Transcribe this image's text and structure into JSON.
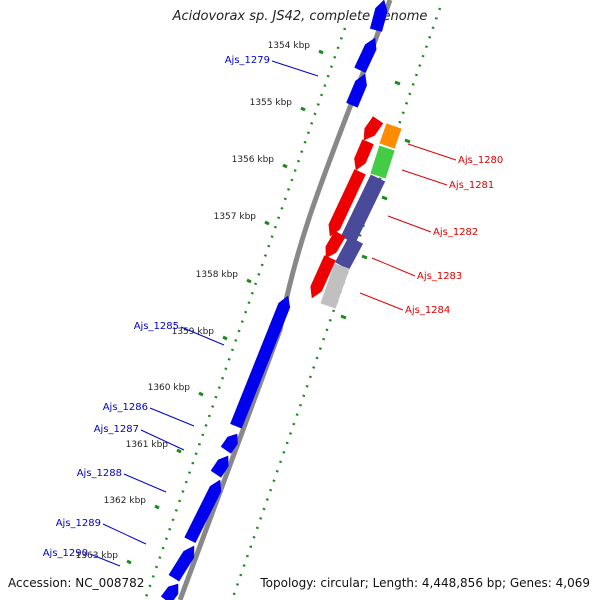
{
  "title": "Acidovorax sp. JS42, complete genome",
  "accession": "Accession: NC_008782",
  "topology": "Topology: circular; Length: 4,448,856 bp; Genes: 4,069",
  "colors": {
    "backbone": "#888888",
    "tick": "#1a8a1a",
    "forward_gene": "#0000ee",
    "reverse_gene": "#ee0000",
    "cog_orange": "#ff8c00",
    "cog_green": "#44cc44",
    "cog_purple": "#4a4a9a",
    "cog_gray": "#c0c0c0",
    "label_forward": "#0000cc",
    "label_reverse": "#dd0000"
  },
  "ruler": [
    "1354 kbp",
    "1355 kbp",
    "1356 kbp",
    "1357 kbp",
    "1358 kbp",
    "1359 kbp",
    "1360 kbp",
    "1361 kbp",
    "1362 kbp",
    "1363 kbp"
  ],
  "forward_genes": [
    {
      "label": "Ajs_1279",
      "labeled": true
    },
    {
      "label": "Ajs_1285",
      "labeled": true
    },
    {
      "label": "Ajs_1286",
      "labeled": true
    },
    {
      "label": "Ajs_1287",
      "labeled": true
    },
    {
      "label": "Ajs_1288",
      "labeled": true
    },
    {
      "label": "Ajs_1289",
      "labeled": true
    },
    {
      "label": "Ajs_1290",
      "labeled": true
    }
  ],
  "reverse_genes": [
    {
      "label": "Ajs_1280",
      "cog_color": "cog_orange"
    },
    {
      "label": "Ajs_1281",
      "cog_color": "cog_green"
    },
    {
      "label": "Ajs_1282",
      "cog_color": "cog_purple"
    },
    {
      "label": "Ajs_1283",
      "cog_color": "cog_purple"
    },
    {
      "label": "Ajs_1284",
      "cog_color": "cog_gray"
    }
  ]
}
